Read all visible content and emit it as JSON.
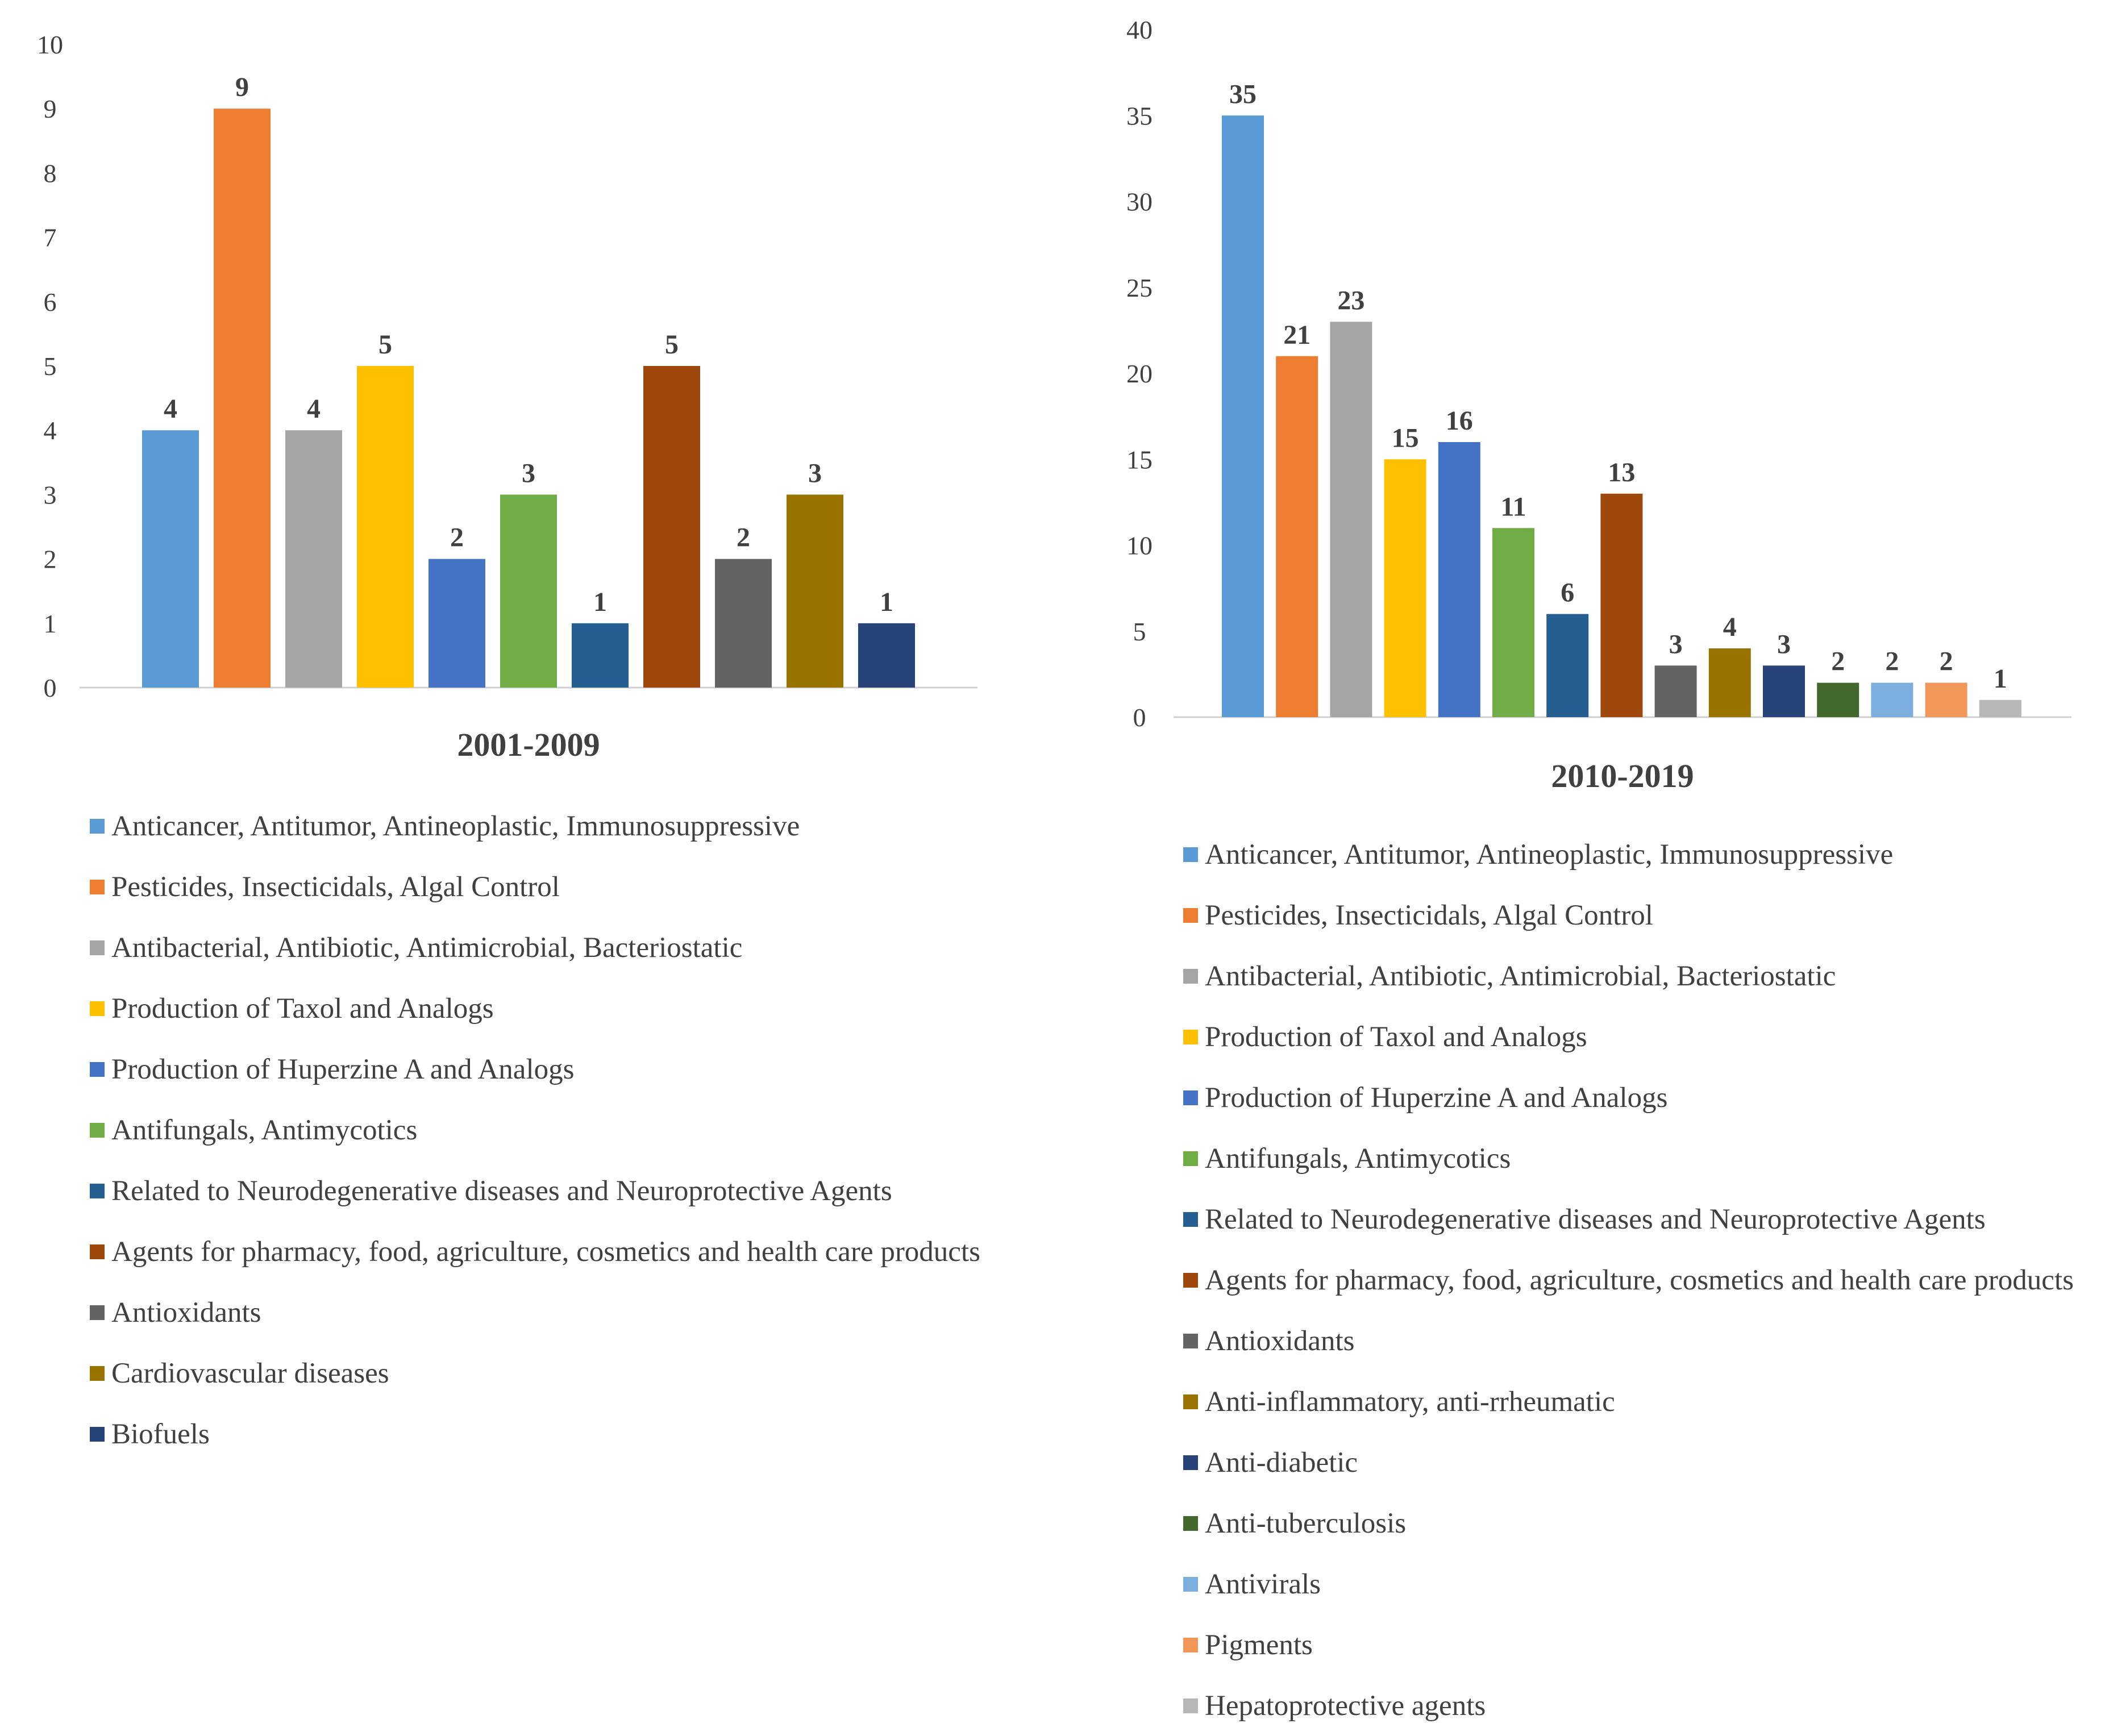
{
  "chart_data": [
    {
      "type": "bar",
      "title": "2001-2009",
      "xlabel": "2001-2009",
      "ylabel": "",
      "ylim": [
        0,
        10
      ],
      "yticks": [
        0,
        1,
        2,
        3,
        4,
        5,
        6,
        7,
        8,
        9,
        10
      ],
      "grid": false,
      "legend_position": "bottom",
      "categories": [
        "Anticancer, Antitumor, Antineoplastic, Immunosuppressive",
        "Pesticides, Insecticidals, Algal Control",
        "Antibacterial, Antibiotic, Antimicrobial, Bacteriostatic",
        "Production of Taxol and Analogs",
        "Production of Huperzine A and Analogs",
        "Antifungals, Antimycotics",
        "Related to Neurodegenerative diseases and Neuroprotective Agents",
        "Agents for pharmacy, food, agriculture, cosmetics and health care products",
        "Antioxidants",
        "Cardiovascular diseases",
        "Biofuels"
      ],
      "values": [
        4,
        9,
        4,
        5,
        2,
        3,
        1,
        5,
        2,
        3,
        1
      ],
      "colors": [
        "#5B9BD5",
        "#ED7D31",
        "#A5A5A5",
        "#FFC000",
        "#4472C4",
        "#70AD47",
        "#255E91",
        "#9E480E",
        "#636363",
        "#997300",
        "#264478"
      ]
    },
    {
      "type": "bar",
      "title": "2010-2019",
      "xlabel": "2010-2019",
      "ylabel": "",
      "ylim": [
        0,
        40
      ],
      "yticks": [
        0,
        5,
        10,
        15,
        20,
        25,
        30,
        35,
        40
      ],
      "grid": false,
      "legend_position": "bottom",
      "categories": [
        "Anticancer, Antitumor, Antineoplastic, Immunosuppressive",
        "Pesticides, Insecticidals, Algal Control",
        "Antibacterial, Antibiotic, Antimicrobial, Bacteriostatic",
        "Production of Taxol and Analogs",
        "Production of Huperzine A and Analogs",
        "Antifungals, Antimycotics",
        "Related to Neurodegenerative diseases and Neuroprotective Agents",
        "Agents for pharmacy, food, agriculture, cosmetics and health care products",
        "Antioxidants",
        "Anti-inflammatory, anti-rrheumatic",
        "Anti-diabetic",
        "Anti-tuberculosis",
        "Antivirals",
        "Pigments",
        "Hepatoprotective agents"
      ],
      "values": [
        35,
        21,
        23,
        15,
        16,
        11,
        6,
        13,
        3,
        4,
        3,
        2,
        2,
        2,
        1
      ],
      "colors": [
        "#5B9BD5",
        "#ED7D31",
        "#A5A5A5",
        "#FFC000",
        "#4472C4",
        "#70AD47",
        "#255E91",
        "#9E480E",
        "#636363",
        "#997300",
        "#264478",
        "#43682B",
        "#7CAFDD",
        "#F1975A",
        "#B7B7B7"
      ]
    }
  ]
}
